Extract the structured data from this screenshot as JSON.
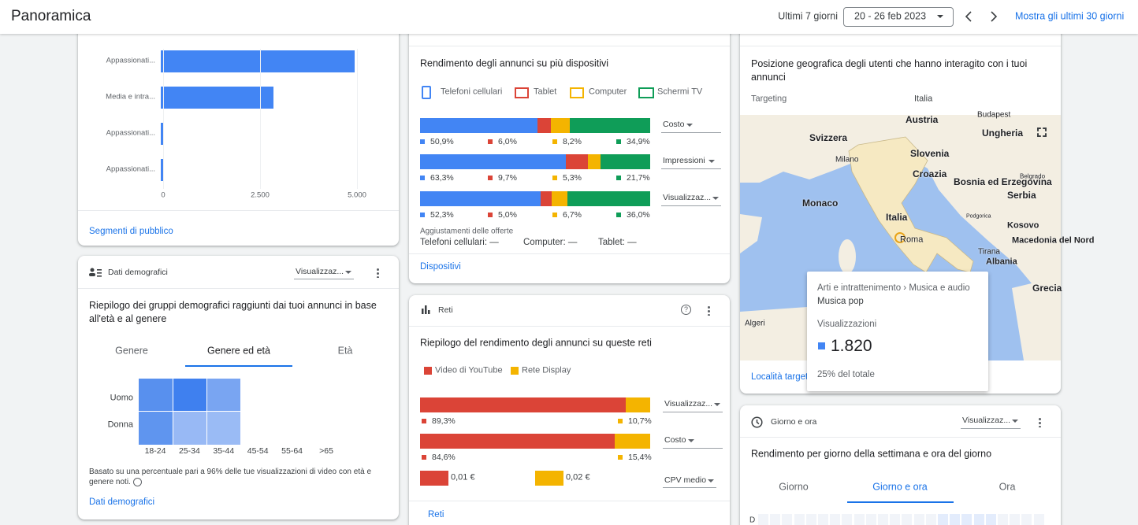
{
  "header": {
    "title": "Panoramica",
    "range_label": "Ultimi 7 giorni",
    "date_range": "20 - 26 feb 2023",
    "link": "Mostra gli ultimi 30 giorni"
  },
  "audience": {
    "categories": [
      "Appassionati...",
      "Media e intra...",
      "Appassionati...",
      "Appassionati..."
    ],
    "values": [
      4940,
      2850,
      20,
      20
    ],
    "color": "#4285f4",
    "xlim": [
      0,
      5000
    ],
    "xticks": [
      0,
      {
        "value": 2500,
        "label": "2.500"
      },
      {
        "value": 5000,
        "label": "5.000"
      }
    ],
    "link": "Segmenti di pubblico"
  },
  "devices": {
    "subtitle": "Rendimento degli annunci su più dispositivi",
    "legend": [
      "Telefoni cellulari",
      "Tablet",
      "Computer",
      "Schermi TV"
    ],
    "colors": [
      "#4285f4",
      "#db4437",
      "#f4b400",
      "#0f9d58"
    ],
    "rows": [
      {
        "metric": "Costo",
        "values": [
          50.9,
          6.0,
          8.2,
          34.9
        ],
        "value_labels": [
          "50,9%",
          "6,0%",
          "8,2%",
          "34,9%"
        ]
      },
      {
        "metric": "Impressioni",
        "values": [
          63.3,
          9.7,
          5.3,
          21.7
        ],
        "value_labels": [
          "63,3%",
          "9,7%",
          "5,3%",
          "21,7%"
        ]
      },
      {
        "metric": "Visualizzaz...",
        "values": [
          52.3,
          5.0,
          6.7,
          36.0
        ],
        "value_labels": [
          "52,3%",
          "5,0%",
          "6,7%",
          "36,0%"
        ]
      }
    ],
    "adjust_title": "Aggiustamenti delle offerte",
    "adjustments": [
      "Telefoni cellulari: —",
      "Computer: —",
      "Tablet: —"
    ],
    "link": "Dispositivi"
  },
  "networks": {
    "title": "Reti",
    "subtitle": "Riepilogo del rendimento degli annunci su queste reti",
    "legend": [
      "Video di YouTube",
      "Rete Display"
    ],
    "colors": [
      "#db4437",
      "#f4b400"
    ],
    "rows": [
      {
        "metric": "Visualizzaz...",
        "values": [
          89.3,
          10.7
        ],
        "value_labels": [
          "89,3%",
          "10,7%"
        ]
      },
      {
        "metric": "Costo",
        "values": [
          84.6,
          15.4
        ],
        "value_labels": [
          "84,6%",
          "15,4%"
        ]
      }
    ],
    "cpv": {
      "metric": "CPV medio",
      "value_labels": [
        "0,01 €",
        "0,02 €"
      ]
    },
    "link": "Reti"
  },
  "demographics": {
    "title": "Dati demografici",
    "dropdown": "Visualizzaz...",
    "subtitle": "Riepilogo dei gruppi demografici raggiunti dai tuoi annunci in base all'età e al genere",
    "tabs": [
      "Genere",
      "Genere ed età",
      "Età"
    ],
    "rows": [
      "Uomo",
      "Donna"
    ],
    "columns": [
      "18-24",
      "25-34",
      "35-44",
      "45-54",
      "55-64",
      ">65"
    ],
    "note": "Basato su una percentuale pari a 96% delle tue visualizzazioni di video con età e genere noti.",
    "link": "Dati demografici"
  },
  "location": {
    "subtitle": "Posizione geografica degli utenti che hanno interagito con i tuoi annunci",
    "targeting_label": "Targeting",
    "targeting_value": "Italia",
    "map_labels": [
      "Austria",
      "Budapest",
      "Ungheria",
      "Svizzera",
      "Slovenia",
      "Milano",
      "Croazia",
      "Bosnia ed Erzegovina",
      "Belgrado",
      "Serbia",
      "Monaco",
      "Italia",
      "Podgorica",
      "Kosovo",
      "Roma",
      "Macedonia del Nord",
      "Tirana",
      "Albania",
      "Algeri",
      "Grecia"
    ],
    "tooltip": {
      "path": "Arti e intrattenimento › Musica e audio",
      "item": "Musica pop",
      "metric": "Visualizzazioni",
      "value": "1.820",
      "share": "25% del totale"
    },
    "link": "Località target"
  },
  "daytime": {
    "title": "Giorno e ora",
    "dropdown": "Visualizzaz...",
    "subtitle": "Rendimento per giorno della settimana e ora del giorno",
    "tabs": [
      "Giorno",
      "Giorno e ora",
      "Ora"
    ],
    "row_label": "D"
  }
}
